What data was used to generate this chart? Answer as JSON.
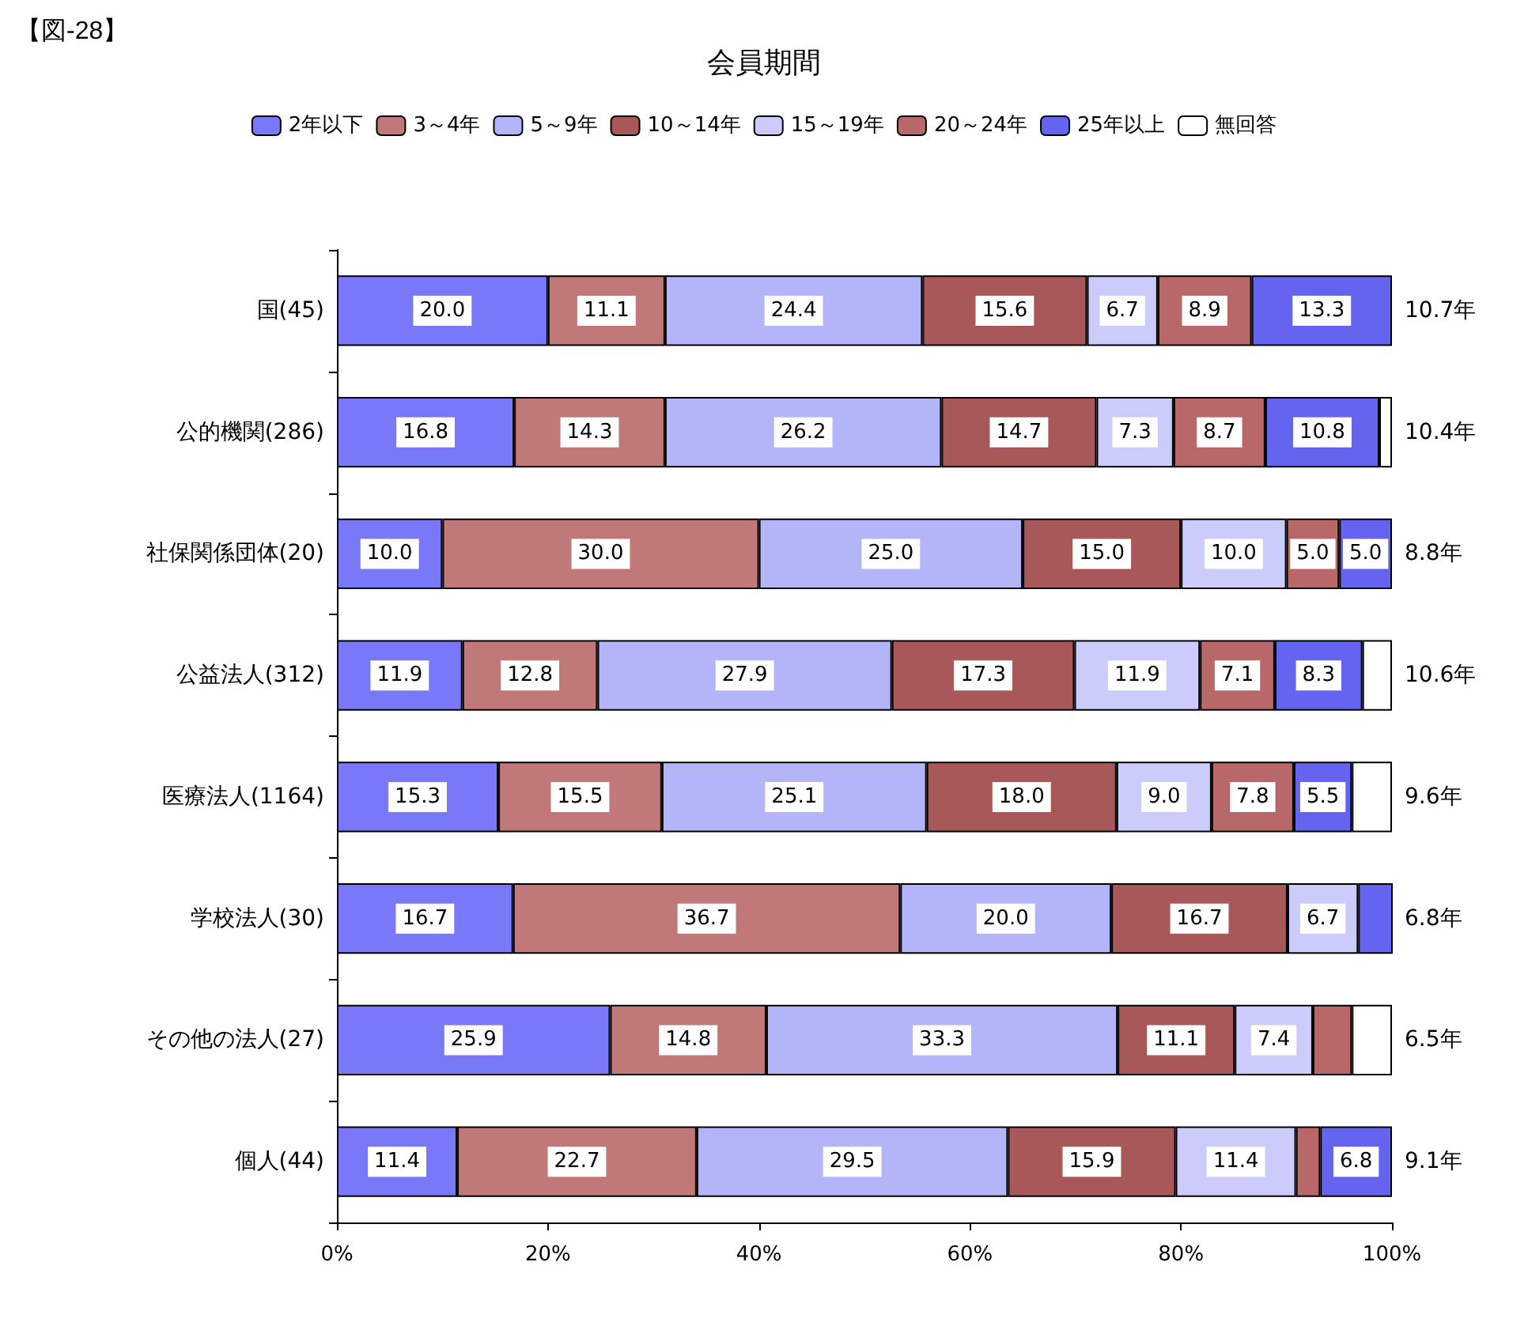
{
  "chart_data": {
    "type": "bar",
    "orientation": "horizontal",
    "stacked": true,
    "title": "会員期間",
    "categories": [
      "国(45)",
      "公的機関(286)",
      "社保関係団体(20)",
      "公益法人(312)",
      "医療法人(1164)",
      "学校法人(30)",
      "その他の法人(27)",
      "個人(44)"
    ],
    "series": [
      {
        "name": "2年以下",
        "color": "#7878f8",
        "values": [
          20.0,
          16.8,
          10.0,
          11.9,
          15.3,
          16.7,
          25.9,
          11.4
        ],
        "value_labels": [
          "20.0",
          "16.8",
          "10.0",
          "11.9",
          "15.3",
          "16.7",
          "25.9",
          "11.4"
        ]
      },
      {
        "name": "3～4年",
        "color": "#c07878",
        "values": [
          11.1,
          14.3,
          30.0,
          12.8,
          15.5,
          36.7,
          14.8,
          22.7
        ],
        "value_labels": [
          "11.1",
          "14.3",
          "30.0",
          "12.8",
          "15.5",
          "36.7",
          "14.8",
          "22.7"
        ]
      },
      {
        "name": "5～9年",
        "color": "#b4b4f8",
        "values": [
          24.4,
          26.2,
          25.0,
          27.9,
          25.1,
          20.0,
          33.3,
          29.5
        ],
        "value_labels": [
          "24.4",
          "26.2",
          "25.0",
          "27.9",
          "25.1",
          "20.0",
          "33.3",
          "29.5"
        ]
      },
      {
        "name": "10～14年",
        "color": "#a85858",
        "values": [
          15.6,
          14.7,
          15.0,
          17.3,
          18.0,
          16.7,
          11.1,
          15.9
        ],
        "value_labels": [
          "15.6",
          "14.7",
          "15.0",
          "17.3",
          "18.0",
          "16.7",
          "11.1",
          "15.9"
        ]
      },
      {
        "name": "15～19年",
        "color": "#ccccfc",
        "values": [
          6.7,
          7.3,
          10.0,
          11.9,
          9.0,
          6.7,
          7.4,
          11.4
        ],
        "value_labels": [
          "6.7",
          "7.3",
          "10.0",
          "11.9",
          "9.0",
          "6.7",
          "7.4",
          "11.4"
        ]
      },
      {
        "name": "20～24年",
        "color": "#b86868",
        "values": [
          8.9,
          8.7,
          5.0,
          7.1,
          7.8,
          0,
          3.7,
          2.3
        ],
        "value_labels": [
          "8.9",
          "8.7",
          "5.0",
          "7.1",
          "7.8",
          null,
          null,
          null
        ]
      },
      {
        "name": "25年以上",
        "color": "#6464f0",
        "values": [
          13.3,
          10.8,
          5.0,
          8.3,
          5.5,
          3.3,
          0,
          6.8
        ],
        "value_labels": [
          "13.3",
          "10.8",
          "5.0",
          "8.3",
          "5.5",
          null,
          null,
          "6.8"
        ]
      },
      {
        "name": "無回答",
        "color": "#ffffff",
        "values": [
          0,
          1.2,
          0,
          2.8,
          3.8,
          0,
          3.8,
          0
        ],
        "value_labels": [
          null,
          null,
          null,
          null,
          null,
          null,
          null,
          null
        ]
      }
    ],
    "xlim": [
      0,
      100
    ],
    "xticks": [
      {
        "value": 0,
        "label": "0%"
      },
      {
        "value": 20,
        "label": "20%"
      },
      {
        "value": 40,
        "label": "40%"
      },
      {
        "value": 60,
        "label": "60%"
      },
      {
        "value": 80,
        "label": "80%"
      },
      {
        "value": 100,
        "label": "100%"
      }
    ],
    "legend": "top",
    "annotations": [
      "【図-28】",
      "10.7年",
      "10.4年",
      "8.8年",
      "10.6年",
      "9.6年",
      "6.8年",
      "6.5年",
      "9.1年"
    ]
  }
}
